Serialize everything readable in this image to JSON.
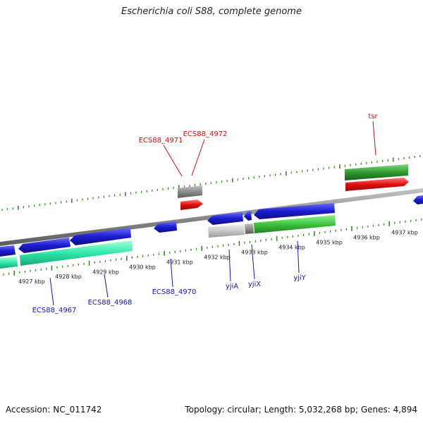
{
  "title": "Escherichia coli S88, complete genome",
  "footer": {
    "accession": "Accession: NC_011742",
    "summary": "Topology: circular; Length: 5,032,268 bp; Genes: 4,894"
  },
  "colors": {
    "tick": "#3b8a2a",
    "backbone": "#8a8a8a",
    "cds_forward": "#1c1ccf",
    "cds_reverse": "#1c1ccf",
    "gene_teal": "#2ee8a8",
    "gene_green": "#3ec43e",
    "gene_red": "#e01010",
    "gene_gray": "#8c8c8c",
    "gene_lightgray": "#c8c8c8",
    "label_blue": "#1515b5",
    "label_red": "#cc1010"
  },
  "scale": {
    "labels": [
      "4927 kbp",
      "4928 kbp",
      "4929 kbp",
      "4930 kbp",
      "4931 kbp",
      "4932 kbp",
      "4933 kbp",
      "4934 kbp",
      "4935 kbp",
      "4936 kbp",
      "4937 kbp"
    ]
  },
  "gene_labels": {
    "ecs88_4967": "ECS88_4967",
    "ecs88_4968": "ECS88_4968",
    "ecs88_4970": "ECS88_4970",
    "yjiA": "yjiA",
    "yjiX": "yjiX",
    "yjiY": "yjiY",
    "ecs88_4971": "ECS88_4971",
    "ecs88_4972": "ECS88_4972",
    "tsr": "tsr"
  }
}
